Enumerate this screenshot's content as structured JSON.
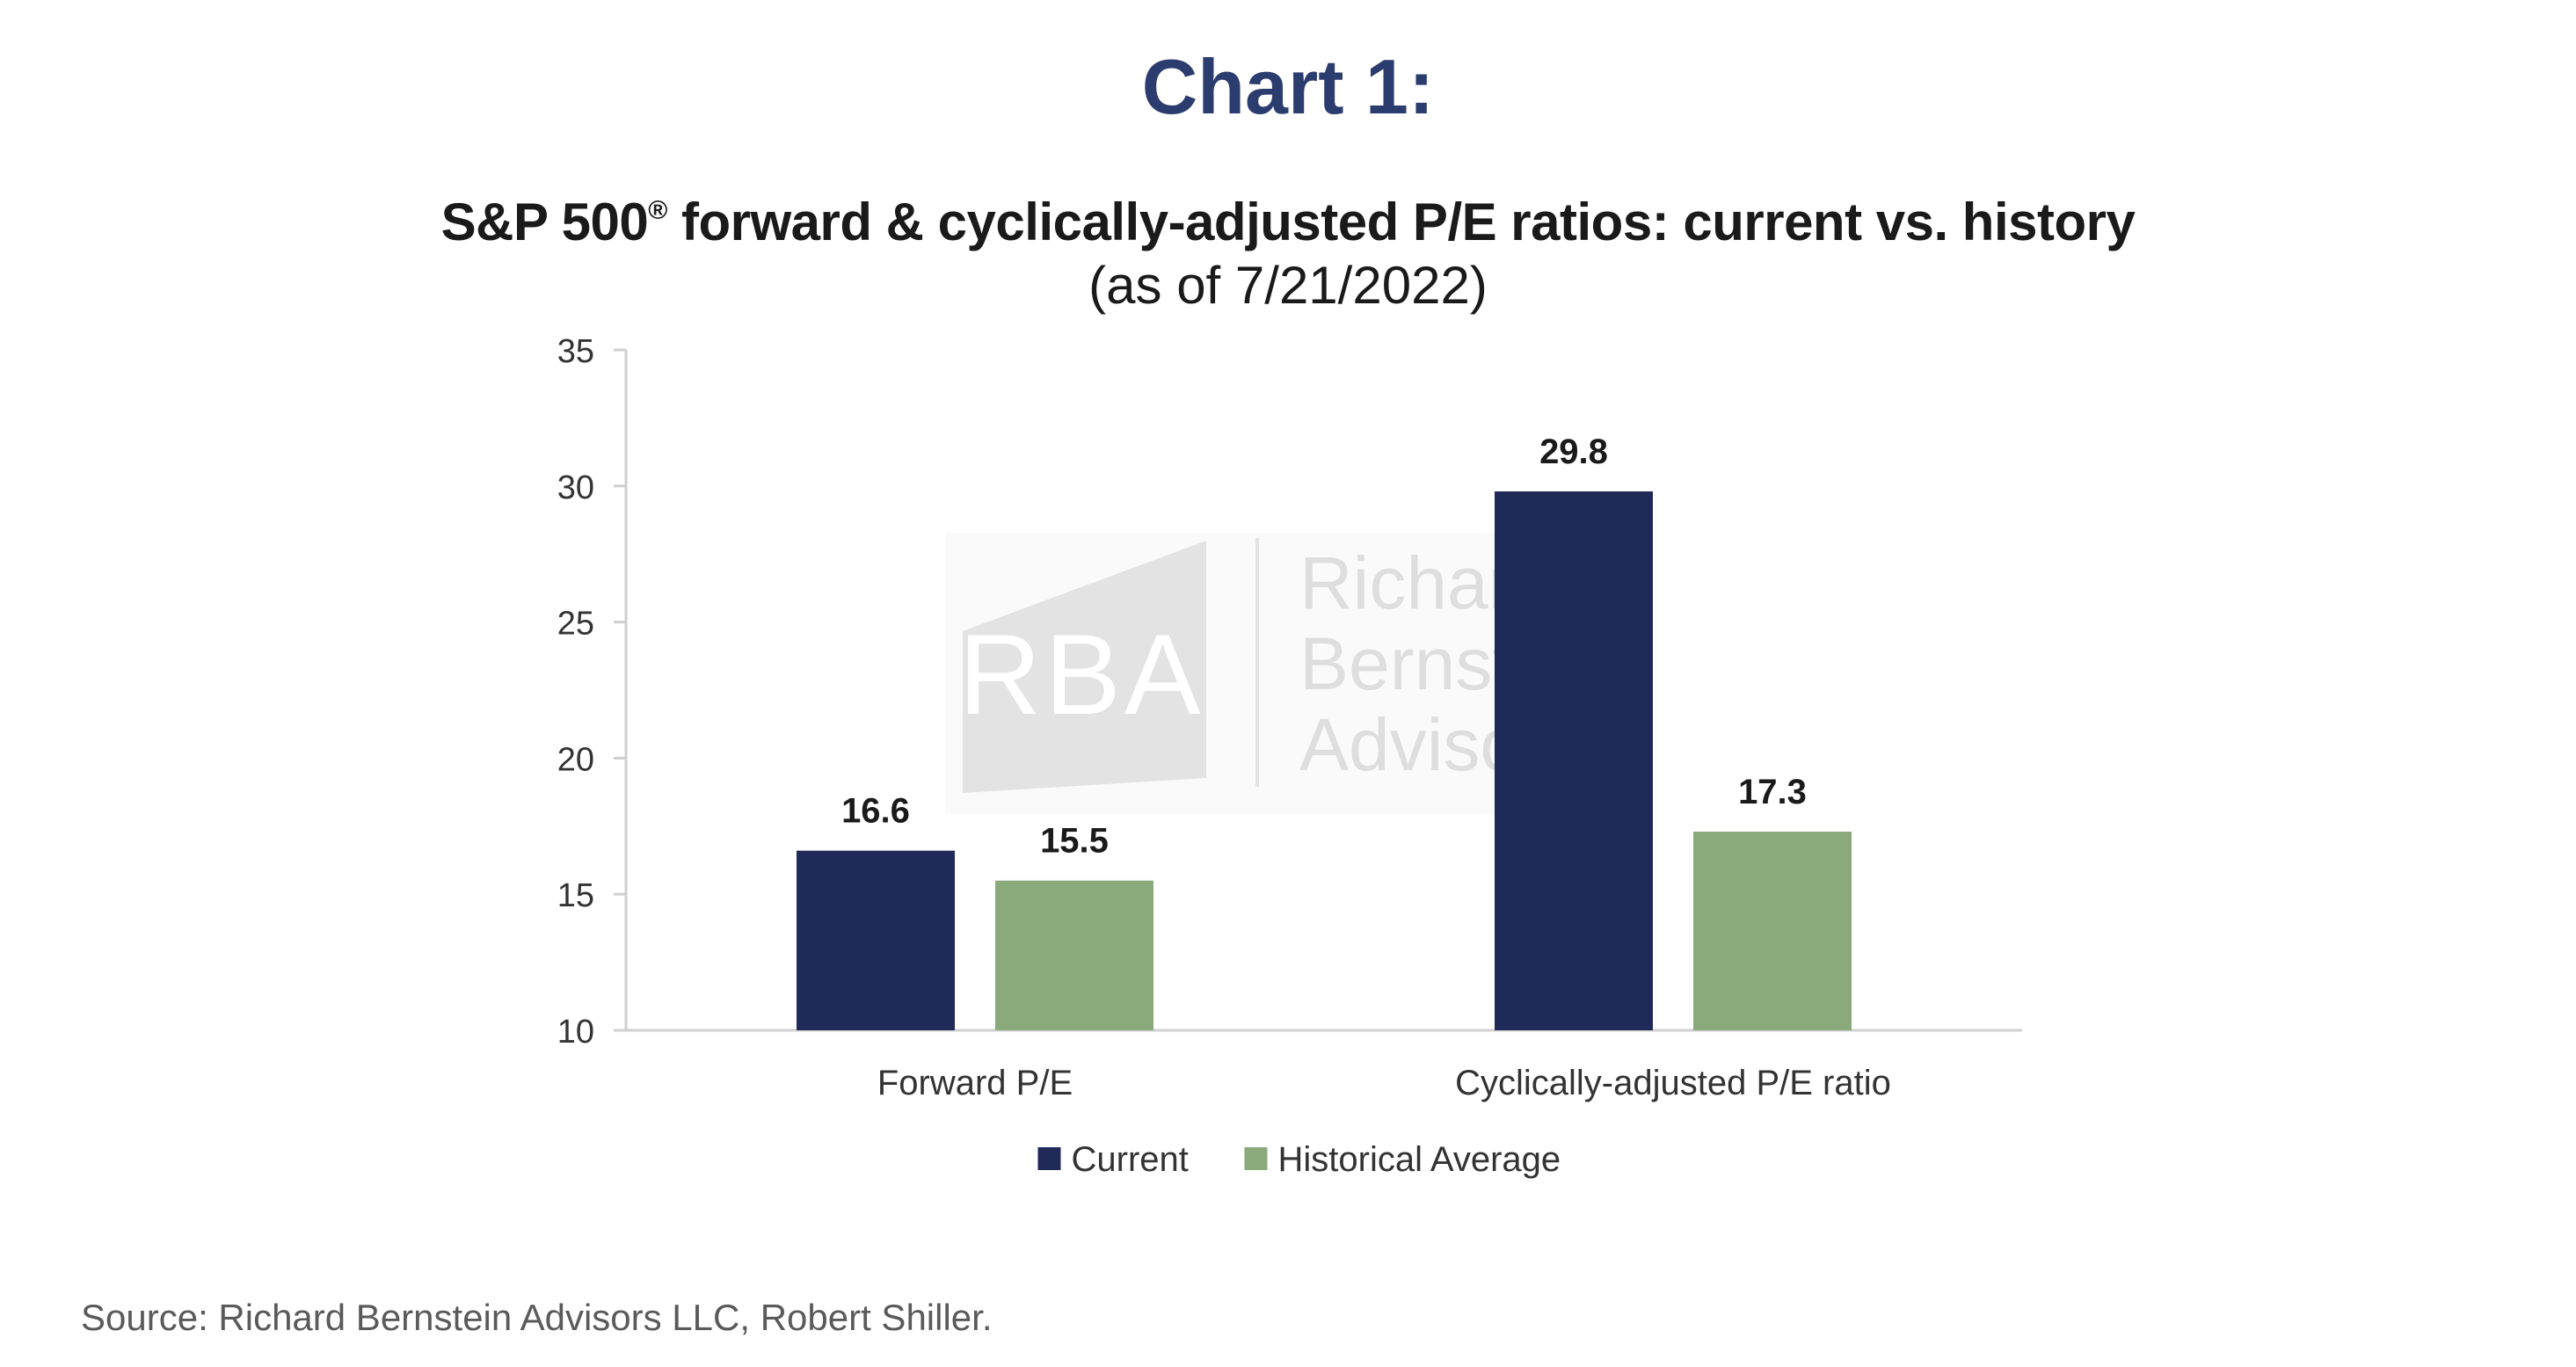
{
  "heading": "Chart 1:",
  "chart_data": {
    "type": "bar",
    "title_main": "S&P 500",
    "title_reg": "®",
    "title_rest": " forward & cyclically-adjusted P/E ratios: current vs. history",
    "subtitle": "(as of 7/21/2022)",
    "categories": [
      "Forward P/E",
      "Cyclically-adjusted P/E ratio"
    ],
    "series": [
      {
        "name": "Current",
        "values": [
          16.6,
          29.8
        ],
        "color": "#202a58"
      },
      {
        "name": "Historical Average",
        "values": [
          15.5,
          17.3
        ],
        "color": "#8aaa7c"
      }
    ],
    "data_labels": [
      [
        "16.6",
        "29.8"
      ],
      [
        "15.5",
        "17.3"
      ]
    ],
    "ylim": [
      10,
      35
    ],
    "yticks": [
      "10",
      "15",
      "20",
      "25",
      "30",
      "35"
    ],
    "xlabel": "",
    "ylabel": "",
    "grid": false,
    "legend_position": "bottom"
  },
  "watermark": {
    "logo_text": "RBA",
    "name_lines": [
      "Richard",
      "Bernstein",
      "Advisors"
    ]
  },
  "source": "Source: Richard Bernstein Advisors LLC, Robert Shiller."
}
